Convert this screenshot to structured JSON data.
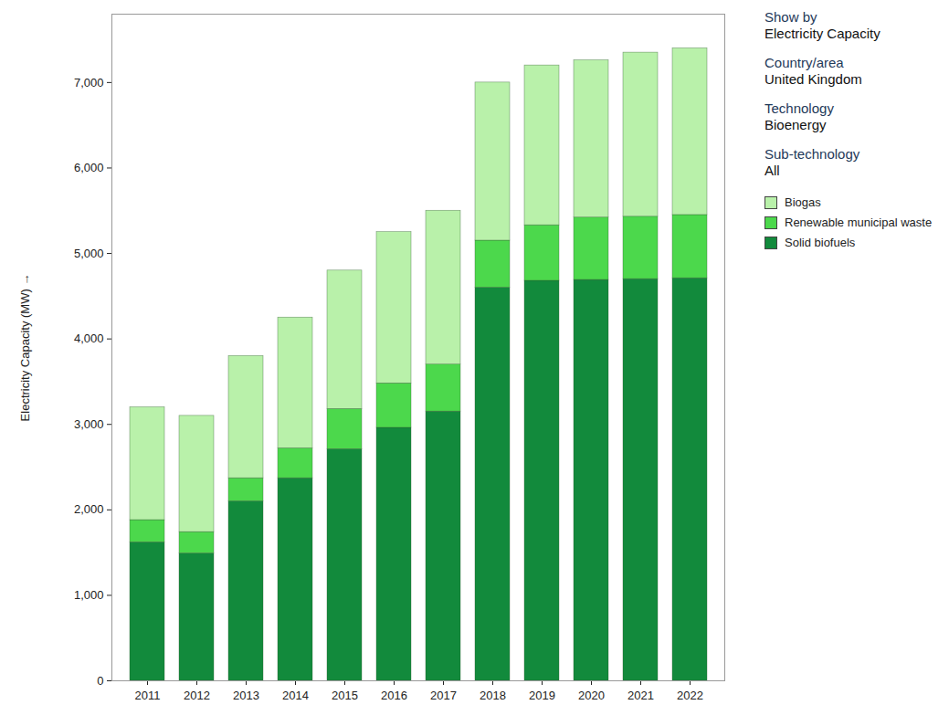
{
  "chart_data": {
    "type": "bar",
    "stacked": true,
    "grid": false,
    "data_labels": false,
    "y_label": "Electricity Capacity (MW)",
    "categories": [
      "2011",
      "2012",
      "2013",
      "2014",
      "2015",
      "2016",
      "2017",
      "2018",
      "2019",
      "2020",
      "2021",
      "2022"
    ],
    "series": [
      {
        "name": "Biogas",
        "color": "#b9f1aa",
        "values": [
          1320,
          1360,
          1430,
          1530,
          1620,
          1770,
          1800,
          1850,
          1870,
          1840,
          1920,
          1950
        ]
      },
      {
        "name": "Renewable municipal waste",
        "color": "#4cd84c",
        "values": [
          260,
          250,
          270,
          350,
          470,
          520,
          550,
          550,
          650,
          730,
          730,
          740
        ]
      },
      {
        "name": "Solid biofuels",
        "color": "#128a3c",
        "values": [
          1620,
          1490,
          2100,
          2370,
          2710,
          2960,
          3150,
          4600,
          4680,
          4690,
          4700,
          4710
        ]
      }
    ],
    "ylim": [
      0,
      7800
    ],
    "yticks": [
      0,
      {
        "value": 1000,
        "label": "1,000"
      },
      {
        "value": 2000,
        "label": "2,000"
      },
      {
        "value": 3000,
        "label": "3,000"
      },
      {
        "value": 4000,
        "label": "4,000"
      },
      {
        "value": 5000,
        "label": "5,000"
      },
      {
        "value": 6000,
        "label": "6,000"
      },
      {
        "value": 7000,
        "label": "7,000"
      }
    ],
    "annotations": [
      {
        "label": "Show by",
        "value": "Electricity Capacity"
      },
      {
        "label": "Country/area",
        "value": "United Kingdom"
      },
      {
        "label": "Technology",
        "value": "Bioenergy"
      },
      {
        "label": "Sub-technology",
        "value": "All"
      }
    ],
    "legend": "right"
  }
}
